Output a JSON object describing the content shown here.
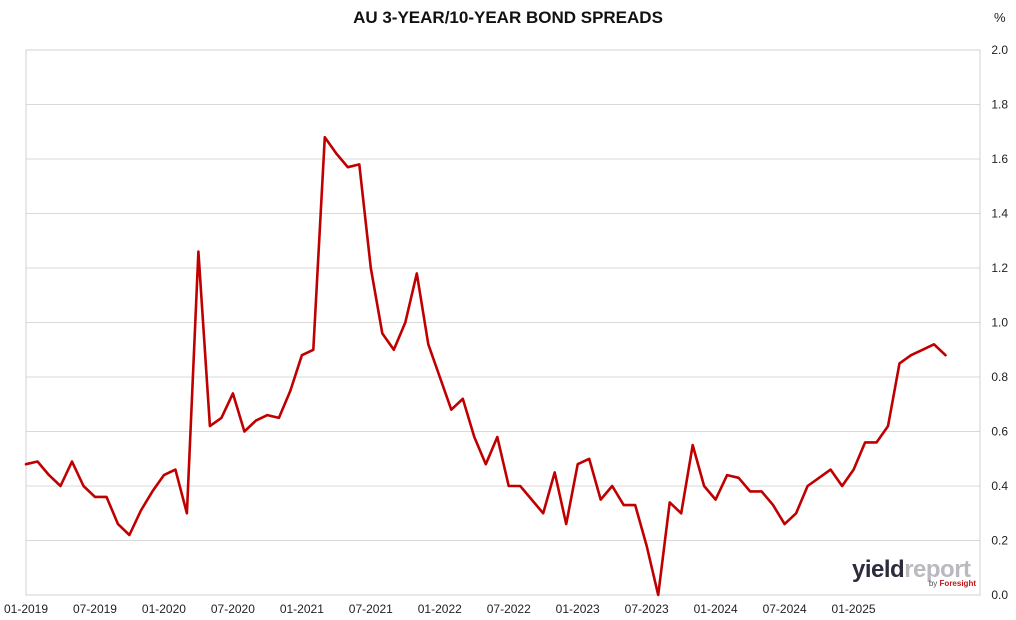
{
  "chart_data": {
    "type": "line",
    "title": "AU 3-YEAR/10-YEAR BOND SPREADS",
    "unit": "%",
    "xlabel": "",
    "ylabel": "",
    "ylim": [
      0,
      2.0
    ],
    "yticks": [
      "0.0",
      "0.2",
      "0.4",
      "0.6",
      "0.8",
      "1.0",
      "1.2",
      "1.4",
      "1.6",
      "1.8",
      "2.0"
    ],
    "xticks": [
      "01-2019",
      "07-2019",
      "01-2020",
      "07-2020",
      "01-2021",
      "07-2021",
      "01-2022",
      "07-2022",
      "01-2023",
      "07-2023",
      "01-2024",
      "07-2024",
      "01-2025"
    ],
    "xlim": [
      "2019-01",
      "2025-12"
    ],
    "grid": "horizontal",
    "y_axis_position": "right",
    "line_color": "#c00000",
    "series": [
      {
        "x": [
          "2019-01",
          "2019-02",
          "2019-03",
          "2019-04",
          "2019-05",
          "2019-06",
          "2019-07",
          "2019-08",
          "2019-09",
          "2019-10",
          "2019-11",
          "2019-12",
          "2020-01",
          "2020-02",
          "2020-03",
          "2020-04",
          "2020-05",
          "2020-06",
          "2020-07",
          "2020-08",
          "2020-09",
          "2020-10",
          "2020-11",
          "2020-12",
          "2021-01",
          "2021-02",
          "2021-03",
          "2021-04",
          "2021-05",
          "2021-06",
          "2021-07",
          "2021-08",
          "2021-09",
          "2021-10",
          "2021-11",
          "2021-12",
          "2022-01",
          "2022-02",
          "2022-03",
          "2022-04",
          "2022-05",
          "2022-06",
          "2022-07",
          "2022-08",
          "2022-09",
          "2022-10",
          "2022-11",
          "2022-12",
          "2023-01",
          "2023-02",
          "2023-03",
          "2023-04",
          "2023-05",
          "2023-06",
          "2023-07",
          "2023-08",
          "2023-09",
          "2023-10",
          "2023-11",
          "2023-12",
          "2024-01",
          "2024-02",
          "2024-03",
          "2024-04",
          "2024-05",
          "2024-06",
          "2024-07",
          "2024-08",
          "2024-09",
          "2024-10",
          "2024-11",
          "2024-12",
          "2025-01",
          "2025-02",
          "2025-03",
          "2025-04",
          "2025-05",
          "2025-06",
          "2025-07",
          "2025-08",
          "2025-09"
        ],
        "values": [
          0.48,
          0.49,
          0.44,
          0.4,
          0.49,
          0.4,
          0.36,
          0.36,
          0.26,
          0.22,
          0.31,
          0.38,
          0.44,
          0.46,
          0.3,
          1.26,
          0.62,
          0.65,
          0.74,
          0.6,
          0.64,
          0.66,
          0.65,
          0.75,
          0.88,
          0.9,
          1.68,
          1.62,
          1.57,
          1.58,
          1.2,
          0.96,
          0.9,
          1.0,
          1.18,
          0.92,
          0.8,
          0.68,
          0.72,
          0.58,
          0.48,
          0.58,
          0.4,
          0.4,
          0.35,
          0.3,
          0.45,
          0.26,
          0.48,
          0.5,
          0.35,
          0.4,
          0.33,
          0.33,
          0.18,
          0.0,
          0.34,
          0.3,
          0.55,
          0.4,
          0.35,
          0.44,
          0.43,
          0.38,
          0.38,
          0.33,
          0.26,
          0.3,
          0.4,
          0.43,
          0.46,
          0.4,
          0.46,
          0.56,
          0.56,
          0.62,
          0.85,
          0.88,
          0.9,
          0.92,
          0.88
        ]
      }
    ]
  },
  "branding": {
    "name_a": "yield",
    "name_b": "report",
    "by": "by",
    "foresight": "Foresight"
  }
}
